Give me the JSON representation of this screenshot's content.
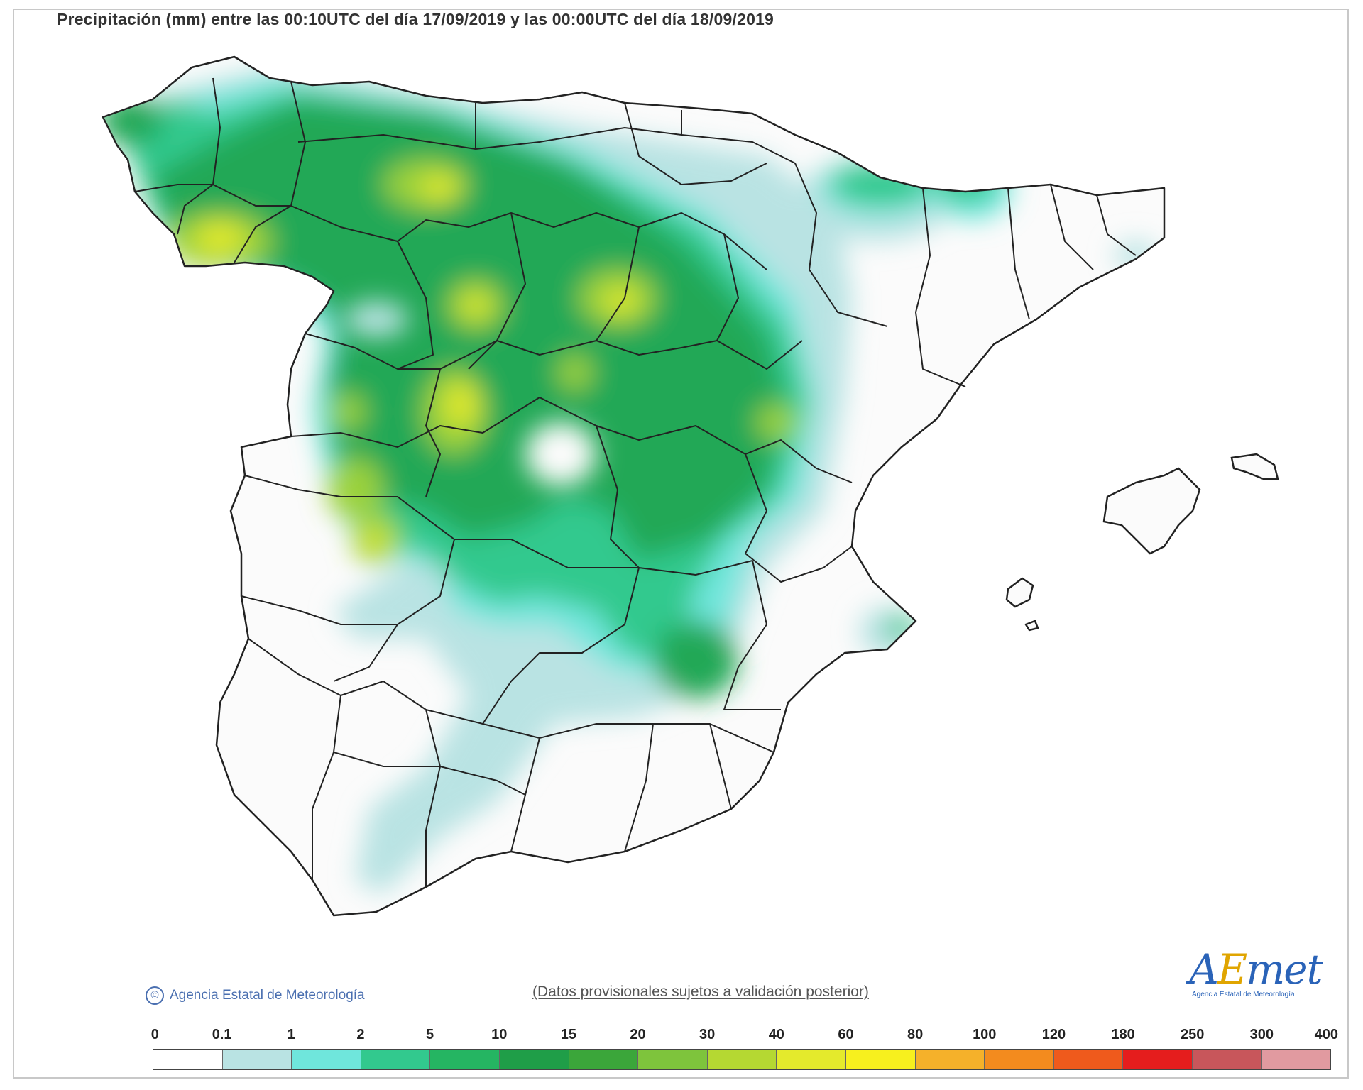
{
  "title": "Precipitación (mm) entre las 00:10UTC del día 17/09/2019 y las 00:00UTC del día 18/09/2019",
  "copyright": {
    "icon": "copyright-icon",
    "text": "Agencia Estatal de Meteorología"
  },
  "disclaimer": "(Datos provisionales sujetos a validación posterior)",
  "logo": {
    "prefix": "A",
    "accent": "E",
    "suffix": "met",
    "subtitle": "Agencia Estatal de Meteorología"
  },
  "legend": {
    "labels": [
      "0",
      "0.1",
      "1",
      "2",
      "5",
      "10",
      "15",
      "20",
      "30",
      "40",
      "60",
      "80",
      "100",
      "120",
      "180",
      "250",
      "300",
      "400"
    ],
    "colors": [
      "#ffffff",
      "#b9e3e3",
      "#6fe6dc",
      "#32c98e",
      "#25b562",
      "#1f9e48",
      "#3ba63a",
      "#7ec43c",
      "#b5d832",
      "#e4ea2c",
      "#f7f01e",
      "#f5b12a",
      "#f38b1e",
      "#ef5a1c",
      "#e51d1d",
      "#c8565b",
      "#e19aa0",
      "#f0c6cb"
    ]
  }
}
